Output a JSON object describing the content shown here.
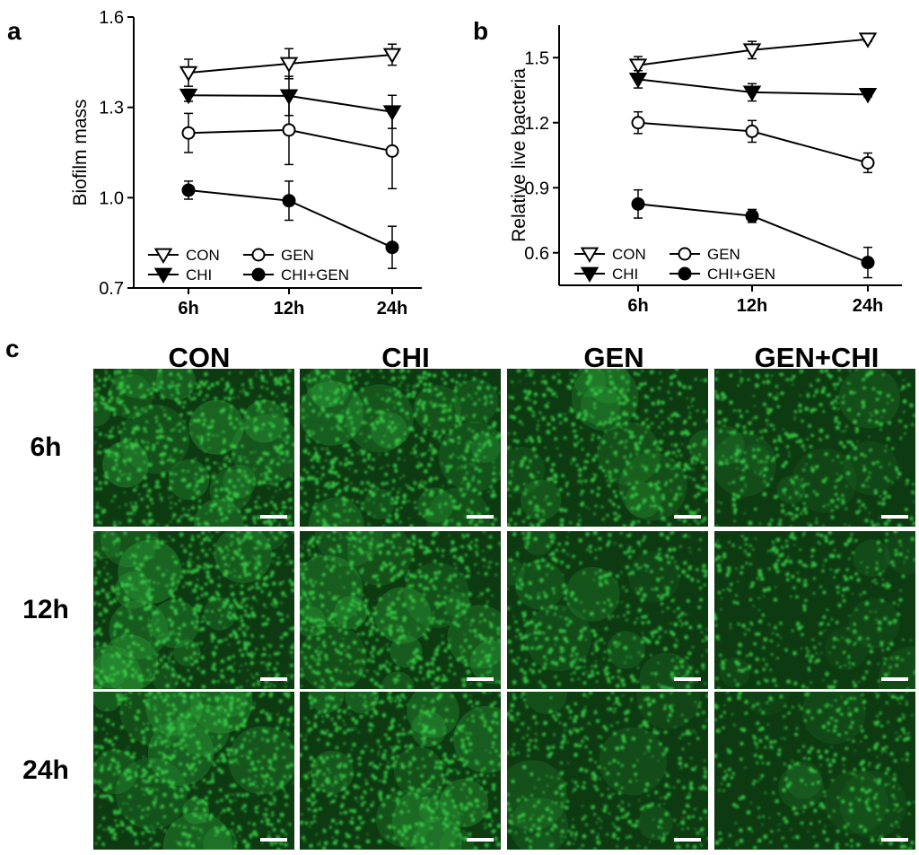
{
  "panels": {
    "a": "a",
    "b": "b",
    "c": "c"
  },
  "chart_data": [
    {
      "type": "line",
      "panel": "a",
      "title": "",
      "ylabel": "Biofilm mass",
      "xlabel": "",
      "categories": [
        "6h",
        "12h",
        "24h"
      ],
      "ylim": [
        0.7,
        1.6
      ],
      "yticks": [
        "0.7",
        "1.0",
        "1.3",
        "1.6"
      ],
      "grid": false,
      "legend_position": "bottom-left",
      "series": [
        {
          "name": "CON",
          "marker": "triangle-down-open",
          "values": [
            1.415,
            1.445,
            1.475
          ],
          "errors": [
            0.045,
            0.05,
            0.035
          ]
        },
        {
          "name": "CHI",
          "marker": "triangle-down-filled",
          "values": [
            1.34,
            1.338,
            1.285
          ],
          "errors": [
            0.02,
            0.065,
            0.055
          ]
        },
        {
          "name": "GEN",
          "marker": "circle-open",
          "values": [
            1.215,
            1.225,
            1.155
          ],
          "errors": [
            0.065,
            0.115,
            0.125
          ]
        },
        {
          "name": "CHI+GEN",
          "marker": "circle-filled",
          "values": [
            1.025,
            0.99,
            0.835
          ],
          "errors": [
            0.03,
            0.065,
            0.07
          ]
        }
      ]
    },
    {
      "type": "line",
      "panel": "b",
      "title": "",
      "ylabel": "Relative live bacteria",
      "xlabel": "",
      "categories": [
        "6h",
        "12h",
        "24h"
      ],
      "ylim": [
        0.45,
        1.65
      ],
      "yticks": [
        "0.6",
        "0.9",
        "1.2",
        "1.5"
      ],
      "grid": false,
      "legend_position": "bottom-left",
      "series": [
        {
          "name": "CON",
          "marker": "triangle-down-open",
          "values": [
            1.465,
            1.535,
            1.585
          ],
          "errors": [
            0.04,
            0.04,
            0.01
          ]
        },
        {
          "name": "CHI",
          "marker": "triangle-down-filled",
          "values": [
            1.4,
            1.34,
            1.33
          ],
          "errors": [
            0.04,
            0.04,
            0.01
          ]
        },
        {
          "name": "GEN",
          "marker": "circle-open",
          "values": [
            1.2,
            1.16,
            1.015
          ],
          "errors": [
            0.05,
            0.05,
            0.045
          ]
        },
        {
          "name": "CHI+GEN",
          "marker": "circle-filled",
          "values": [
            0.825,
            0.77,
            0.555
          ],
          "errors": [
            0.065,
            0.03,
            0.07
          ]
        }
      ]
    }
  ],
  "micrographs": {
    "columns": [
      "CON",
      "CHI",
      "GEN",
      "GEN+CHI"
    ],
    "rows": [
      "6h",
      "12h",
      "24h"
    ],
    "fluorescence_color": "#3bd64a",
    "background_color": "#0e3a12",
    "density": [
      [
        0.95,
        0.92,
        0.72,
        0.5
      ],
      [
        0.97,
        0.93,
        0.6,
        0.42
      ],
      [
        0.96,
        0.9,
        0.52,
        0.4
      ]
    ]
  }
}
